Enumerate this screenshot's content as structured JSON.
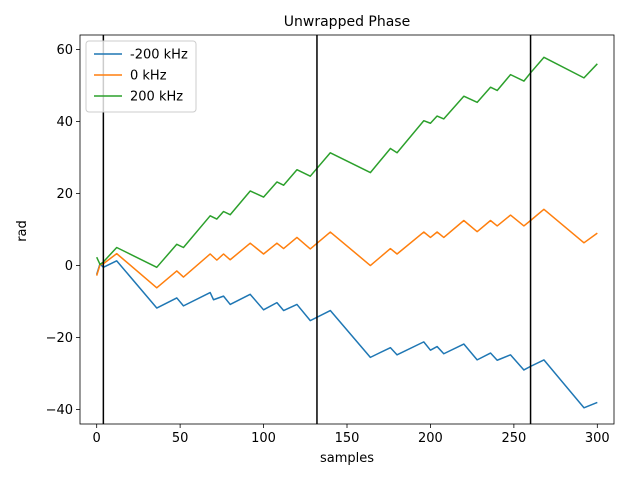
{
  "chart_data": {
    "type": "line",
    "title": "Unwrapped Phase",
    "xlabel": "samples",
    "ylabel": "rad",
    "xlim": [
      -10,
      310
    ],
    "ylim": [
      -44,
      64
    ],
    "xticks": [
      0,
      50,
      100,
      150,
      200,
      250,
      300
    ],
    "yticks": [
      -40,
      -20,
      0,
      20,
      40,
      60
    ],
    "grid": false,
    "legend_position": "upper-left",
    "vlines": [
      4,
      132,
      260
    ],
    "series": [
      {
        "name": "-200 kHz",
        "color": "#1f77b4",
        "x": [
          0,
          2,
          4,
          12,
          36,
          48,
          52,
          68,
          70,
          76,
          80,
          92,
          100,
          108,
          112,
          120,
          128,
          140,
          164,
          176,
          180,
          196,
          200,
          204,
          208,
          220,
          228,
          236,
          240,
          248,
          256,
          260,
          268,
          292,
          300
        ],
        "y": [
          -2.5,
          0.5,
          -0.5,
          1.3,
          -11.8,
          -9.0,
          -11.2,
          -7.5,
          -9.5,
          -8.5,
          -10.8,
          -8.0,
          -12.3,
          -10.3,
          -12.5,
          -10.8,
          -15.3,
          -12.5,
          -25.5,
          -22.8,
          -24.8,
          -21.2,
          -23.5,
          -22.5,
          -24.5,
          -21.8,
          -26.2,
          -24.3,
          -26.3,
          -24.8,
          -29.0,
          -28.0,
          -26.2,
          -39.5,
          -38.0
        ]
      },
      {
        "name": "0 kHz",
        "color": "#ff7f0e",
        "x": [
          0,
          2,
          4,
          12,
          36,
          48,
          52,
          68,
          72,
          76,
          80,
          92,
          100,
          108,
          112,
          120,
          128,
          140,
          164,
          176,
          180,
          196,
          200,
          204,
          208,
          220,
          228,
          236,
          240,
          248,
          256,
          260,
          268,
          292,
          300
        ],
        "y": [
          -2.8,
          0.2,
          0.5,
          3.3,
          -6.2,
          -1.5,
          -3.2,
          3.2,
          1.5,
          3.2,
          1.6,
          6.2,
          3.2,
          6.2,
          4.7,
          7.8,
          4.6,
          9.3,
          0.0,
          4.7,
          3.2,
          9.3,
          7.8,
          9.3,
          7.8,
          12.5,
          9.4,
          12.5,
          11.0,
          14.0,
          11.0,
          12.5,
          15.6,
          6.3,
          9.0
        ]
      },
      {
        "name": "200 kHz",
        "color": "#2ca02c",
        "x": [
          0,
          2,
          4,
          12,
          36,
          48,
          52,
          68,
          72,
          76,
          80,
          92,
          100,
          108,
          112,
          120,
          128,
          140,
          164,
          176,
          180,
          196,
          200,
          204,
          208,
          220,
          228,
          236,
          240,
          248,
          256,
          260,
          268,
          292,
          300
        ],
        "y": [
          2.3,
          0.3,
          1.0,
          5.0,
          -0.5,
          5.9,
          5.0,
          13.8,
          12.9,
          15.0,
          14.1,
          20.7,
          19.0,
          23.2,
          22.3,
          26.6,
          24.8,
          31.3,
          25.8,
          32.5,
          31.3,
          40.2,
          39.5,
          41.5,
          40.7,
          47.0,
          45.3,
          49.5,
          48.6,
          53.0,
          51.2,
          53.5,
          57.8,
          52.1,
          56.0
        ]
      }
    ]
  }
}
